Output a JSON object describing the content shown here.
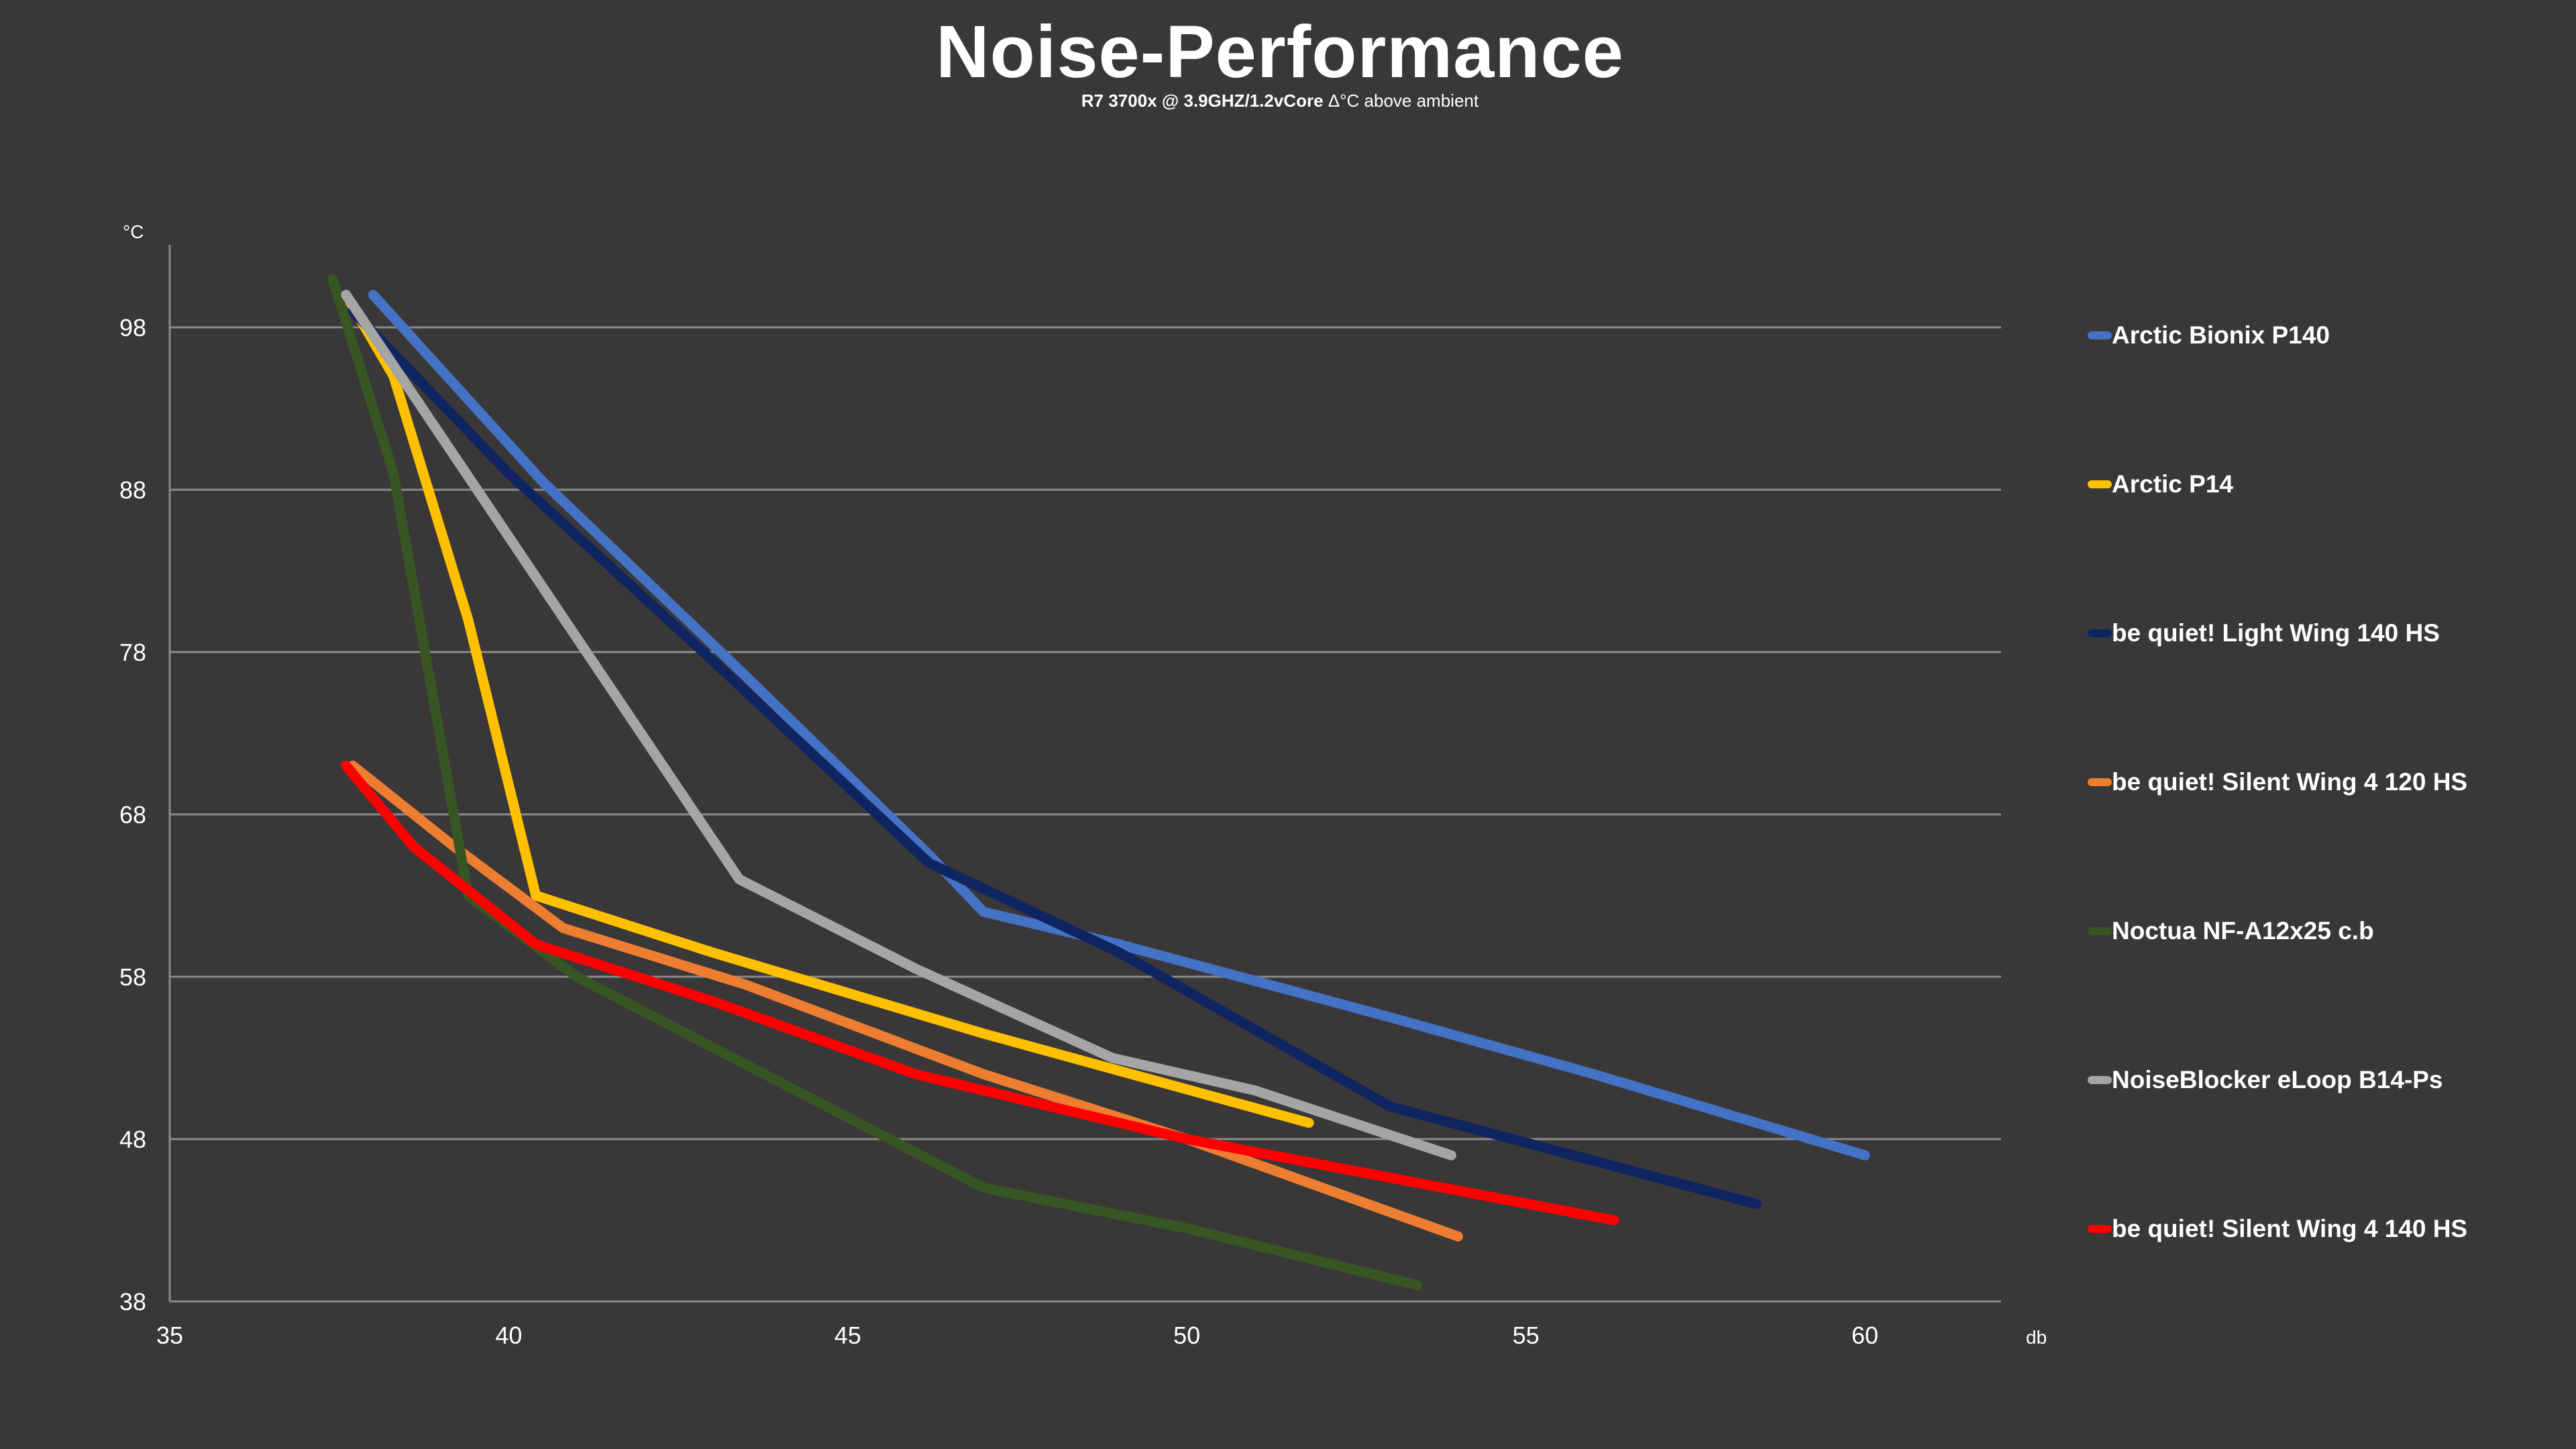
{
  "chart_data": {
    "type": "line",
    "title": "Noise-Performance",
    "subtitle_bold": "R7 3700x @ 3.9GHZ/1.2vCore",
    "subtitle_rest": " Δ°C above ambient",
    "xlabel": "db",
    "ylabel": "°C",
    "xlim": [
      35,
      62
    ],
    "ylim": [
      38,
      103
    ],
    "xticks": [
      35,
      40,
      45,
      50,
      55,
      60
    ],
    "yticks": [
      38,
      48,
      58,
      68,
      78,
      88,
      98
    ],
    "grid": true,
    "legend_position": "right",
    "series": [
      {
        "name": "Arctic Bionix P140",
        "color": "#4472c4",
        "x": [
          38.0,
          40.5,
          43.5,
          46.2,
          47.0,
          49.0,
          53.0,
          56.0,
          60.0
        ],
        "y": [
          100,
          88.5,
          76.5,
          65.5,
          62,
          60,
          55.5,
          52,
          47
        ]
      },
      {
        "name": "Arctic P14",
        "color": "#ffc000",
        "x": [
          37.6,
          38.3,
          39.4,
          40.4,
          43.0,
          47.0,
          51.8
        ],
        "y": [
          100,
          95,
          80,
          63,
          59.5,
          54.5,
          49
        ]
      },
      {
        "name": "be quiet! Light Wing 140 HS",
        "color": "#0f2562",
        "x": [
          37.7,
          40.0,
          43.0,
          46.2,
          49.0,
          53.0,
          58.4
        ],
        "y": [
          99,
          89,
          77.5,
          65,
          59.5,
          50,
          44
        ]
      },
      {
        "name": "be quiet! Silent Wing 4 120 HS",
        "color": "#ed7d31",
        "x": [
          37.7,
          39.2,
          40.8,
          43.5,
          47.0,
          50.0,
          54.0
        ],
        "y": [
          71,
          66,
          61,
          57.5,
          52,
          48,
          42
        ]
      },
      {
        "name": "Noctua NF-A12x25 c.b",
        "color": "#375623",
        "x": [
          37.4,
          38.3,
          39.4,
          41.0,
          44.0,
          47.0,
          50.0,
          53.4
        ],
        "y": [
          101,
          89,
          63,
          58,
          51.5,
          45,
          42.5,
          39
        ]
      },
      {
        "name": "NoiseBlocker eLoop B14-Ps",
        "color": "#a5a5a5",
        "x": [
          37.6,
          40.5,
          43.4,
          46.0,
          48.9,
          51.0,
          53.9
        ],
        "y": [
          100,
          82,
          64,
          58.5,
          53,
          51,
          47
        ]
      },
      {
        "name": "be quiet! Silent Wing 4 140 HS",
        "color": "#ff0000",
        "x": [
          37.6,
          38.6,
          40.4,
          43.0,
          46.0,
          50.0,
          56.3
        ],
        "y": [
          71,
          66,
          60,
          56.5,
          52,
          48,
          43
        ]
      }
    ]
  }
}
